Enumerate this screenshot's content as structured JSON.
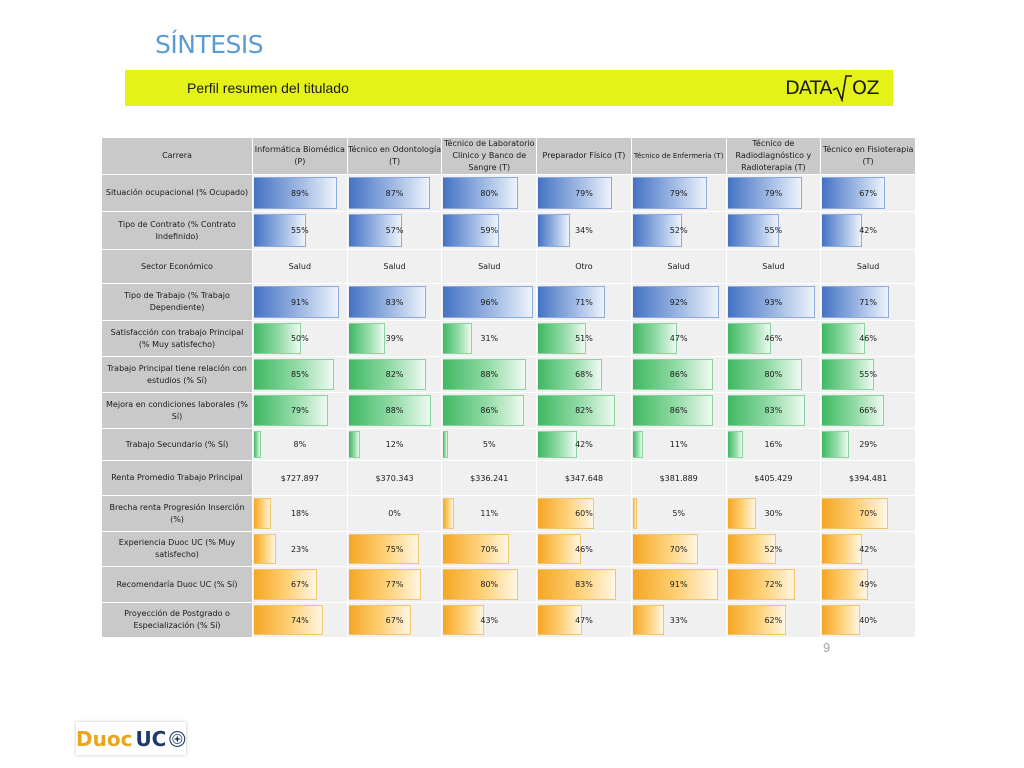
{
  "title": "SÍNTESIS",
  "banner": {
    "text": "Perfil resumen del titulado",
    "logo_left": "DATA",
    "logo_right": "OZ"
  },
  "page_number": "9",
  "footer": {
    "brand_left": "Duoc",
    "brand_right": "UC"
  },
  "colors": {
    "blue": "#4472c4",
    "green": "#3fb862",
    "orange": "#f5a623",
    "banner": "#e4f218"
  },
  "table": {
    "corner": "Carrera",
    "columns": [
      "Informática Biomédica (P)",
      "Técnico en Odontología (T)",
      "Técnico de Laboratorio Clinico y Banco de Sangre (T)",
      "Preparador Físico (T)",
      "Técnico de Enfermería (T)",
      "Técnico de Radiodiagnóstico y Radioterapia (T)",
      "Técnico en Fisioterapia (T)"
    ],
    "rows": [
      {
        "label": "Situación ocupacional (% Ocupado)",
        "color": "blue",
        "values": [
          "89%",
          "87%",
          "80%",
          "79%",
          "79%",
          "79%",
          "67%"
        ],
        "pct": [
          89,
          87,
          80,
          79,
          79,
          79,
          67
        ]
      },
      {
        "label": "Tipo de Contrato (% Contrato Indefinido)",
        "color": "blue",
        "values": [
          "55%",
          "57%",
          "59%",
          "34%",
          "52%",
          "55%",
          "42%"
        ],
        "pct": [
          55,
          57,
          59,
          34,
          52,
          55,
          42
        ]
      },
      {
        "label": "Sector Económico",
        "color": "none",
        "values": [
          "Salud",
          "Salud",
          "Salud",
          "Otro",
          "Salud",
          "Salud",
          "Salud"
        ]
      },
      {
        "label": "Tipo de Trabajo (% Trabajo Dependiente)",
        "color": "blue",
        "values": [
          "91%",
          "83%",
          "96%",
          "71%",
          "92%",
          "93%",
          "71%"
        ],
        "pct": [
          91,
          83,
          96,
          71,
          92,
          93,
          71
        ]
      },
      {
        "label": "Satisfacción con trabajo Principal (% Muy satisfecho)",
        "color": "green",
        "values": [
          "50%",
          "39%",
          "31%",
          "51%",
          "47%",
          "46%",
          "46%"
        ],
        "pct": [
          50,
          39,
          31,
          51,
          47,
          46,
          46
        ]
      },
      {
        "label": "Trabajo Principal tiene relación con estudios (% Sí)",
        "color": "green",
        "values": [
          "85%",
          "82%",
          "88%",
          "68%",
          "86%",
          "80%",
          "55%"
        ],
        "pct": [
          85,
          82,
          88,
          68,
          86,
          80,
          55
        ]
      },
      {
        "label": "Mejora en condiciones laborales (% Sí)",
        "color": "green",
        "values": [
          "79%",
          "88%",
          "86%",
          "82%",
          "86%",
          "83%",
          "66%"
        ],
        "pct": [
          79,
          88,
          86,
          82,
          86,
          83,
          66
        ]
      },
      {
        "label": "Trabajo Secundario (% Sí)",
        "color": "green",
        "values": [
          "8%",
          "12%",
          "5%",
          "42%",
          "11%",
          "16%",
          "29%"
        ],
        "pct": [
          8,
          12,
          5,
          42,
          11,
          16,
          29
        ]
      },
      {
        "label": "Renta Promedio Trabajo Principal",
        "color": "none",
        "values": [
          "$727.897",
          "$370.343",
          "$336.241",
          "$347.648",
          "$381.889",
          "$405.429",
          "$394.481"
        ]
      },
      {
        "label": "Brecha renta Progresión Inserción (%)",
        "color": "orange",
        "values": [
          "18%",
          "0%",
          "11%",
          "60%",
          "5%",
          "30%",
          "70%"
        ],
        "pct": [
          18,
          0,
          11,
          60,
          5,
          30,
          70
        ]
      },
      {
        "label": "Experiencia Duoc UC (% Muy satisfecho)",
        "color": "orange",
        "values": [
          "23%",
          "75%",
          "70%",
          "46%",
          "70%",
          "52%",
          "42%"
        ],
        "pct": [
          23,
          75,
          70,
          46,
          70,
          52,
          42
        ]
      },
      {
        "label": "Recomendaría Duoc UC (% Sí)",
        "color": "orange",
        "values": [
          "67%",
          "77%",
          "80%",
          "83%",
          "91%",
          "72%",
          "49%"
        ],
        "pct": [
          67,
          77,
          80,
          83,
          91,
          72,
          49
        ]
      },
      {
        "label": "Proyección de Postgrado o Especialización (% Sí)",
        "color": "orange",
        "values": [
          "74%",
          "67%",
          "43%",
          "47%",
          "33%",
          "62%",
          "40%"
        ],
        "pct": [
          74,
          67,
          43,
          47,
          33,
          62,
          40
        ]
      }
    ]
  }
}
